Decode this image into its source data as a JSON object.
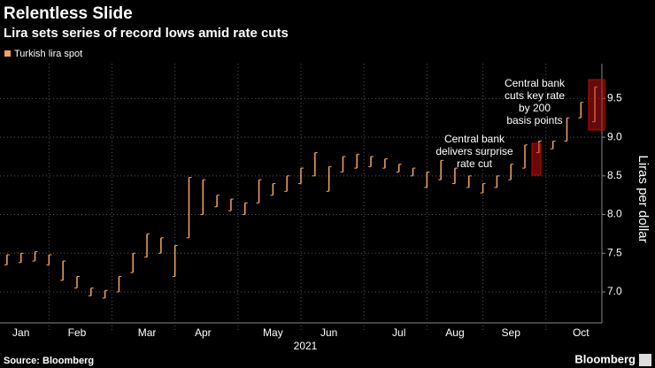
{
  "chart_data": {
    "type": "hilo",
    "title": "Relentless Slide",
    "subtitle": "Lira sets series of record lows amid rate cuts",
    "y_label": "Liras per dollar",
    "x_label": "2021",
    "source": "Source: Bloomberg",
    "brand": "Bloomberg",
    "categories": [
      null,
      "Jan",
      null,
      null,
      null,
      "Feb",
      null,
      null,
      null,
      null,
      "Mar",
      null,
      null,
      null,
      "Apr",
      null,
      null,
      null,
      null,
      "May",
      null,
      null,
      null,
      "Jun",
      null,
      null,
      null,
      null,
      "Jul",
      null,
      null,
      null,
      "Aug",
      null,
      null,
      null,
      "Sep",
      null,
      null,
      null,
      null,
      "Oct",
      null
    ],
    "series": [
      {
        "name": "Turkish lira spot",
        "color": "#f4a460",
        "low": [
          7.35,
          7.38,
          7.4,
          7.35,
          7.15,
          7.05,
          6.95,
          6.92,
          7.0,
          7.25,
          7.45,
          7.5,
          7.2,
          7.7,
          8.0,
          8.1,
          8.05,
          8.0,
          8.15,
          8.25,
          8.3,
          8.4,
          8.5,
          8.3,
          8.55,
          8.6,
          8.62,
          8.6,
          8.55,
          8.5,
          8.35,
          8.45,
          8.4,
          8.35,
          8.28,
          8.35,
          8.45,
          8.6,
          8.8,
          8.85,
          8.95,
          9.25,
          9.2
        ],
        "high": [
          7.48,
          7.5,
          7.52,
          7.48,
          7.4,
          7.2,
          7.05,
          7.02,
          7.2,
          7.5,
          7.75,
          7.7,
          7.6,
          8.48,
          8.45,
          8.25,
          8.2,
          8.15,
          8.45,
          8.4,
          8.5,
          8.6,
          8.8,
          8.62,
          8.75,
          8.78,
          8.75,
          8.72,
          8.65,
          8.6,
          8.55,
          8.7,
          8.6,
          8.5,
          8.4,
          8.5,
          8.65,
          8.9,
          8.95,
          8.95,
          9.25,
          9.45,
          9.65
        ]
      }
    ],
    "ylim": [
      6.6,
      9.95
    ],
    "yticks": [
      {
        "value": 7,
        "label": "7.0"
      },
      7.5,
      {
        "value": 8,
        "label": "8.0"
      },
      8.5,
      {
        "value": 9,
        "label": "9.0"
      },
      9.5
    ],
    "grid": true,
    "annotations": [
      "Central bank delivers surprise rate cut",
      "Central bank cuts key rate by 200 basis points"
    ]
  }
}
